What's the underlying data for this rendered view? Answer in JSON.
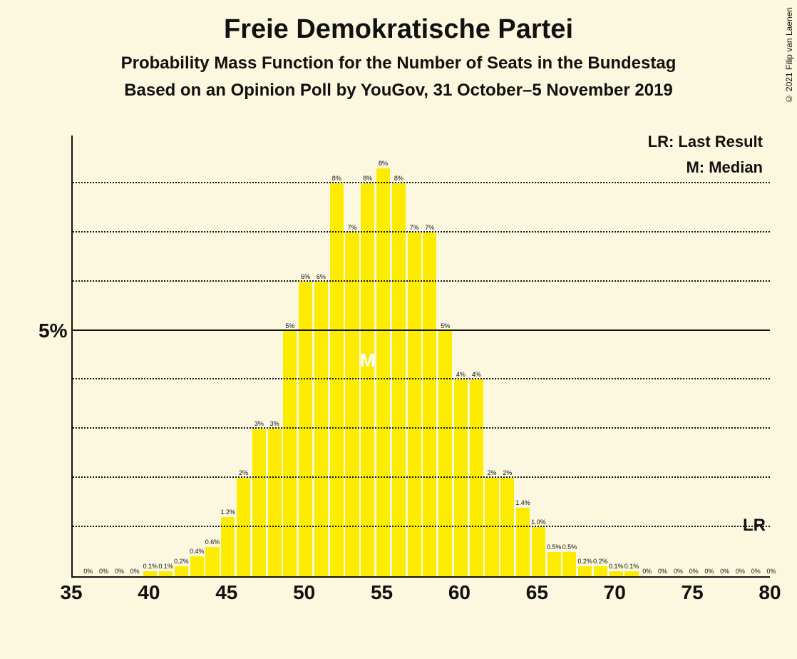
{
  "copyright": "© 2021 Filip van Laenen",
  "title": "Freie Demokratische Partei",
  "subtitle1": "Probability Mass Function for the Number of Seats in the Bundestag",
  "subtitle2": "Based on an Opinion Poll by YouGov, 31 October–5 November 2019",
  "legend": {
    "lr": "LR: Last Result",
    "m": "M: Median"
  },
  "lr_tag": "LR",
  "median_tag": "M",
  "y_axis": {
    "max": 9,
    "major_tick": {
      "value": 5,
      "label": "5%"
    },
    "gridlines": [
      1,
      2,
      3,
      4,
      6,
      7,
      8
    ]
  },
  "x_axis": {
    "min": 35,
    "max": 80,
    "ticks": [
      35,
      40,
      45,
      50,
      55,
      60,
      65,
      70,
      75,
      80
    ]
  },
  "chart": {
    "type": "bar",
    "bar_color": "#fdeb00",
    "background_color": "#fcf8df",
    "grid_color": "#111111",
    "bar_width_ratio": 0.88,
    "median_seat": 54,
    "lr_line_pct": 1,
    "bars": [
      {
        "x": 36,
        "pct": 0,
        "label": "0%"
      },
      {
        "x": 37,
        "pct": 0,
        "label": "0%"
      },
      {
        "x": 38,
        "pct": 0,
        "label": "0%"
      },
      {
        "x": 39,
        "pct": 0,
        "label": "0%"
      },
      {
        "x": 40,
        "pct": 0.1,
        "label": "0.1%"
      },
      {
        "x": 41,
        "pct": 0.1,
        "label": "0.1%"
      },
      {
        "x": 42,
        "pct": 0.2,
        "label": "0.2%"
      },
      {
        "x": 43,
        "pct": 0.4,
        "label": "0.4%"
      },
      {
        "x": 44,
        "pct": 0.6,
        "label": "0.6%"
      },
      {
        "x": 45,
        "pct": 1.2,
        "label": "1.2%"
      },
      {
        "x": 46,
        "pct": 2,
        "label": "2%"
      },
      {
        "x": 47,
        "pct": 3,
        "label": "3%"
      },
      {
        "x": 48,
        "pct": 3,
        "label": "3%"
      },
      {
        "x": 49,
        "pct": 5,
        "label": "5%"
      },
      {
        "x": 50,
        "pct": 6,
        "label": "6%"
      },
      {
        "x": 51,
        "pct": 6,
        "label": "6%"
      },
      {
        "x": 52,
        "pct": 8,
        "label": "8%"
      },
      {
        "x": 53,
        "pct": 7,
        "label": "7%"
      },
      {
        "x": 54,
        "pct": 8,
        "label": "8%"
      },
      {
        "x": 55,
        "pct": 8.3,
        "label": "8%"
      },
      {
        "x": 56,
        "pct": 8,
        "label": "8%"
      },
      {
        "x": 57,
        "pct": 7,
        "label": "7%"
      },
      {
        "x": 58,
        "pct": 7,
        "label": "7%"
      },
      {
        "x": 59,
        "pct": 5,
        "label": "5%"
      },
      {
        "x": 60,
        "pct": 4,
        "label": "4%"
      },
      {
        "x": 61,
        "pct": 4,
        "label": "4%"
      },
      {
        "x": 62,
        "pct": 2,
        "label": "2%"
      },
      {
        "x": 63,
        "pct": 2,
        "label": "2%"
      },
      {
        "x": 64,
        "pct": 1.4,
        "label": "1.4%"
      },
      {
        "x": 65,
        "pct": 1.0,
        "label": "1.0%"
      },
      {
        "x": 66,
        "pct": 0.5,
        "label": "0.5%"
      },
      {
        "x": 67,
        "pct": 0.5,
        "label": "0.5%"
      },
      {
        "x": 68,
        "pct": 0.2,
        "label": "0.2%"
      },
      {
        "x": 69,
        "pct": 0.2,
        "label": "0.2%"
      },
      {
        "x": 70,
        "pct": 0.1,
        "label": "0.1%"
      },
      {
        "x": 71,
        "pct": 0.1,
        "label": "0.1%"
      },
      {
        "x": 72,
        "pct": 0,
        "label": "0%"
      },
      {
        "x": 73,
        "pct": 0,
        "label": "0%"
      },
      {
        "x": 74,
        "pct": 0,
        "label": "0%"
      },
      {
        "x": 75,
        "pct": 0,
        "label": "0%"
      },
      {
        "x": 76,
        "pct": 0,
        "label": "0%"
      },
      {
        "x": 77,
        "pct": 0,
        "label": "0%"
      },
      {
        "x": 78,
        "pct": 0,
        "label": "0%"
      },
      {
        "x": 79,
        "pct": 0,
        "label": "0%"
      },
      {
        "x": 80,
        "pct": 0,
        "label": "0%"
      }
    ]
  }
}
